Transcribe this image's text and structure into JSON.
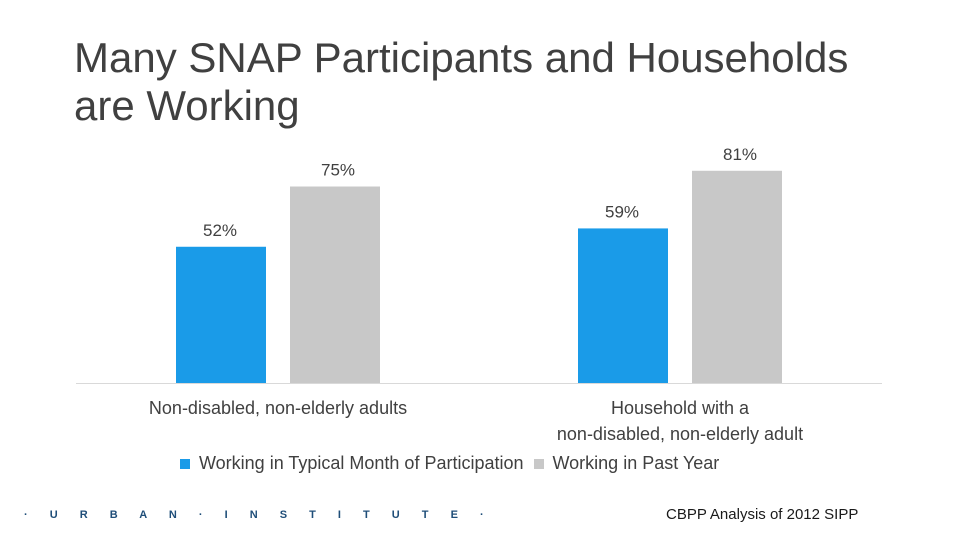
{
  "slide": {
    "title": "Many SNAP Participants and Households are Working",
    "source": "CBPP Analysis of 2012 SIPP",
    "logo": "· U R B A N · I N S T I T U T E ·"
  },
  "colors": {
    "series1": "#1a9be8",
    "series2": "#c8c8c8",
    "axis": "#d9d9d9",
    "text": "#404040"
  },
  "chart_data": {
    "type": "bar",
    "categories": [
      [
        "Non-disabled, non-elderly adults"
      ],
      [
        "Household with a",
        "non-disabled, non-elderly adult"
      ]
    ],
    "series": [
      {
        "name": "Working in Typical Month of Participation",
        "values": [
          52,
          59
        ],
        "labels": [
          "52%",
          "59%"
        ]
      },
      {
        "name": "Working in Past Year",
        "values": [
          75,
          81
        ],
        "labels": [
          "75%",
          "81%"
        ]
      }
    ],
    "ylim": [
      0,
      100
    ],
    "grid": false,
    "legend": "bottom"
  }
}
